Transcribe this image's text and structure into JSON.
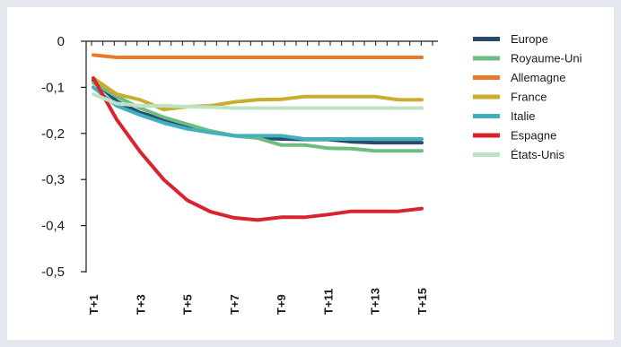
{
  "chart_data": {
    "type": "line",
    "title": "",
    "xlabel": "",
    "ylabel": "",
    "ylim": [
      -0.5,
      0
    ],
    "y_ticks": [
      {
        "value": 0,
        "label": "0"
      },
      {
        "value": -0.1,
        "label": "-0,1"
      },
      {
        "value": -0.2,
        "label": "-0,2"
      },
      {
        "value": -0.3,
        "label": "-0,3"
      },
      {
        "value": -0.4,
        "label": "-0,4"
      },
      {
        "value": -0.5,
        "label": "-0,5"
      }
    ],
    "x": [
      1,
      2,
      3,
      4,
      5,
      6,
      7,
      8,
      9,
      10,
      11,
      12,
      13,
      14,
      15
    ],
    "x_tick_labels": [
      {
        "x": 1,
        "label": "T+1"
      },
      {
        "x": 3,
        "label": "T+3"
      },
      {
        "x": 5,
        "label": "T+5"
      },
      {
        "x": 7,
        "label": "T+7"
      },
      {
        "x": 9,
        "label": "T+9"
      },
      {
        "x": 11,
        "label": "T+11"
      },
      {
        "x": 13,
        "label": "T+13"
      },
      {
        "x": 15,
        "label": "T+15"
      }
    ],
    "legend_position": "right",
    "series": [
      {
        "name": "Europe",
        "color": "#2c4a6e",
        "values": [
          -0.085,
          -0.13,
          -0.155,
          -0.17,
          -0.185,
          -0.195,
          -0.205,
          -0.21,
          -0.212,
          -0.213,
          -0.213,
          -0.218,
          -0.22,
          -0.22,
          -0.22
        ]
      },
      {
        "name": "Royaume-Uni",
        "color": "#6dbd82",
        "values": [
          -0.09,
          -0.12,
          -0.145,
          -0.165,
          -0.18,
          -0.195,
          -0.205,
          -0.21,
          -0.225,
          -0.225,
          -0.232,
          -0.233,
          -0.238,
          -0.238,
          -0.238
        ]
      },
      {
        "name": "Allemagne",
        "color": "#e87a2a",
        "values": [
          -0.03,
          -0.035,
          -0.035,
          -0.035,
          -0.035,
          -0.035,
          -0.035,
          -0.035,
          -0.035,
          -0.035,
          -0.035,
          -0.035,
          -0.035,
          -0.035,
          -0.035
        ]
      },
      {
        "name": "France",
        "color": "#c9ad2d",
        "values": [
          -0.08,
          -0.115,
          -0.127,
          -0.148,
          -0.142,
          -0.14,
          -0.132,
          -0.127,
          -0.126,
          -0.12,
          -0.12,
          -0.12,
          -0.12,
          -0.127,
          -0.127
        ]
      },
      {
        "name": "Italie",
        "color": "#3fb0bd",
        "values": [
          -0.1,
          -0.14,
          -0.16,
          -0.177,
          -0.19,
          -0.198,
          -0.205,
          -0.205,
          -0.205,
          -0.212,
          -0.212,
          -0.212,
          -0.212,
          -0.212,
          -0.212
        ]
      },
      {
        "name": "Espagne",
        "color": "#d9232e",
        "values": [
          -0.08,
          -0.17,
          -0.24,
          -0.3,
          -0.345,
          -0.37,
          -0.383,
          -0.388,
          -0.382,
          -0.382,
          -0.376,
          -0.369,
          -0.369,
          -0.369,
          -0.363
        ]
      },
      {
        "name": "États-Unis",
        "color": "#bde3c5",
        "values": [
          -0.115,
          -0.135,
          -0.14,
          -0.14,
          -0.142,
          -0.143,
          -0.145,
          -0.145,
          -0.145,
          -0.145,
          -0.145,
          -0.145,
          -0.145,
          -0.145,
          -0.145
        ]
      }
    ]
  }
}
